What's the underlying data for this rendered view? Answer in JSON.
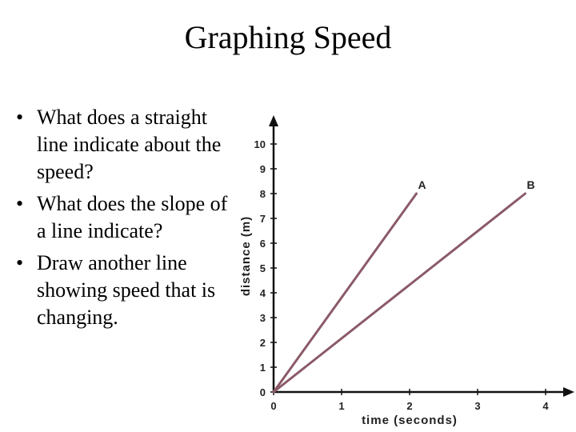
{
  "slide": {
    "title": "Graphing Speed",
    "bullets": [
      "What does a straight line indicate about the speed?",
      "What does the slope of a line indicate?",
      "Draw another line showing speed that is changing."
    ]
  },
  "chart_data": {
    "type": "line",
    "title": "",
    "xlabel": "time (seconds)",
    "ylabel": "distance (m)",
    "xlim": [
      0,
      4
    ],
    "ylim": [
      0,
      10
    ],
    "x_ticks": [
      "0",
      "1",
      "2",
      "3",
      "4"
    ],
    "y_ticks": [
      "0",
      "1",
      "2",
      "3",
      "4",
      "5",
      "6",
      "7",
      "8",
      "9",
      "10"
    ],
    "grid": false,
    "line_color": "#8b5a68",
    "series": [
      {
        "name": "A",
        "x": [
          0,
          2.1
        ],
        "y": [
          0,
          8
        ]
      },
      {
        "name": "B",
        "x": [
          0,
          3.7
        ],
        "y": [
          0,
          8
        ]
      }
    ]
  }
}
